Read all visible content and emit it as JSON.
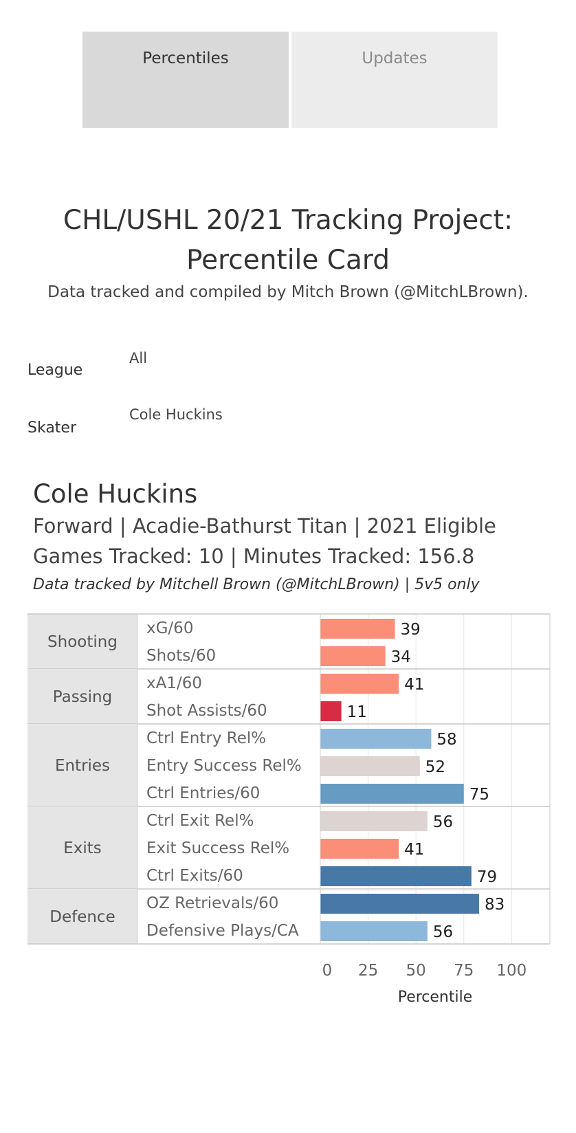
{
  "tabs": {
    "percentiles": "Percentiles",
    "updates": "Updates"
  },
  "header": {
    "title_line1": "CHL/USHL 20/21 Tracking Project:",
    "title_line2": "Percentile Card",
    "subtitle": "Data tracked and compiled by Mitch Brown (@MitchLBrown)."
  },
  "filters": {
    "league_label": "League",
    "league_value": "All",
    "skater_label": "Skater",
    "skater_value": "Cole Huckins"
  },
  "player": {
    "name": "Cole Huckins",
    "info": "Forward | Acadie-Bathurst Titan | 2021 Eligible",
    "games": "Games Tracked: 10 | Minutes Tracked: 156.8",
    "note": "Data tracked by Mitchell Brown (@MitchLBrown) | 5v5 only"
  },
  "chart_data": {
    "type": "bar",
    "orientation": "horizontal",
    "xlabel": "Percentile",
    "xlim": [
      0,
      120
    ],
    "xticks": [
      0,
      25,
      50,
      75,
      100
    ],
    "grid": "vertical",
    "groups": [
      {
        "name": "Shooting",
        "metrics": [
          {
            "label": "xG/60",
            "value": 39,
            "color": "#fa8e77"
          },
          {
            "label": "Shots/60",
            "value": 34,
            "color": "#fa8e77"
          }
        ]
      },
      {
        "name": "Passing",
        "metrics": [
          {
            "label": "xA1/60",
            "value": 41,
            "color": "#fa8e77"
          },
          {
            "label": "Shot Assists/60",
            "value": 11,
            "color": "#d72c43"
          }
        ]
      },
      {
        "name": "Entries",
        "metrics": [
          {
            "label": "Ctrl Entry Rel%",
            "value": 58,
            "color": "#8db8da"
          },
          {
            "label": "Entry Success Rel%",
            "value": 52,
            "color": "#ddd3d0"
          },
          {
            "label": "Ctrl Entries/60",
            "value": 75,
            "color": "#669bc4"
          }
        ]
      },
      {
        "name": "Exits",
        "metrics": [
          {
            "label": "Ctrl Exit Rel%",
            "value": 56,
            "color": "#ddd3d0"
          },
          {
            "label": "Exit Success Rel%",
            "value": 41,
            "color": "#fa8e77"
          },
          {
            "label": "Ctrl Exits/60",
            "value": 79,
            "color": "#4879a6"
          }
        ]
      },
      {
        "name": "Defence",
        "metrics": [
          {
            "label": "OZ Retrievals/60",
            "value": 83,
            "color": "#4879a6"
          },
          {
            "label": "Defensive Plays/CA",
            "value": 56,
            "color": "#8db8da"
          }
        ]
      }
    ]
  }
}
